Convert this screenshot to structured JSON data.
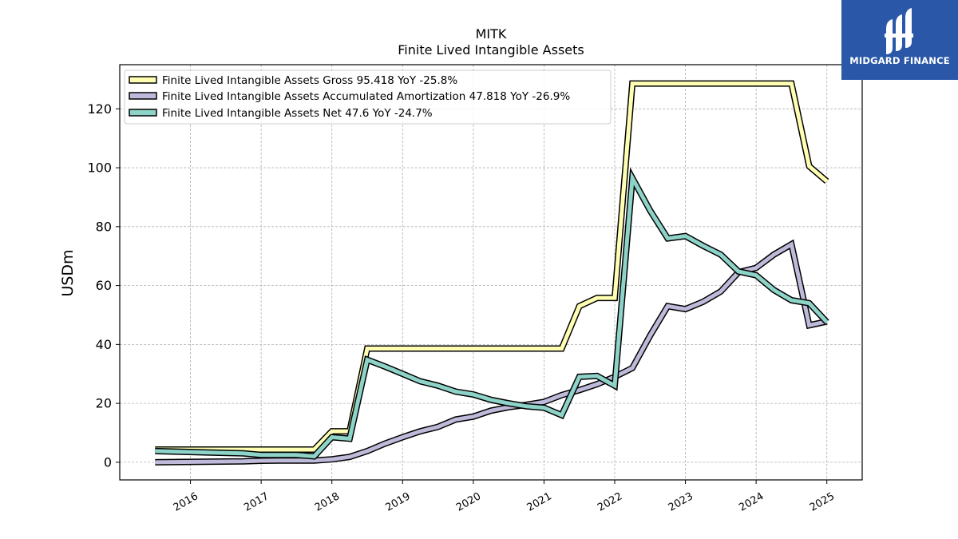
{
  "chart_data": {
    "type": "line",
    "title": "MITK",
    "subtitle": "Finite Lived Intangible Assets",
    "ylabel": "USDm",
    "xlim": [
      2015.0,
      2025.5
    ],
    "ylim": [
      -6,
      135
    ],
    "yticks": [
      0,
      20,
      40,
      60,
      80,
      100,
      120
    ],
    "xticks": [
      2016,
      2017,
      2018,
      2019,
      2020,
      2021,
      2022,
      2023,
      2024,
      2025
    ],
    "grid": true,
    "legend_position": "upper-left",
    "series": [
      {
        "name": "Finite Lived Intangible Assets Gross",
        "legend_label": "Finite Lived Intangible Assets Gross  95.418 YoY -25.8%",
        "color": "#ffffb3",
        "x": [
          2015.5,
          2017.75,
          2018.0,
          2018.25,
          2018.5,
          2021.25,
          2021.5,
          2021.75,
          2022.0,
          2022.25,
          2024.5,
          2024.75,
          2025.0
        ],
        "y": [
          4.3,
          4.3,
          10.5,
          10.5,
          38.6,
          38.6,
          53.0,
          55.8,
          55.8,
          128.6,
          128.6,
          100.5,
          95.4
        ]
      },
      {
        "name": "Finite Lived Intangible Assets Accumulated Amortization",
        "legend_label": "Finite Lived Intangible Assets Accumulated Amortization  47.818 YoY -26.9%",
        "color": "#bebada",
        "x": [
          2015.5,
          2016.75,
          2017.0,
          2017.25,
          2017.5,
          2017.75,
          2018.0,
          2018.25,
          2018.5,
          2018.75,
          2019.0,
          2019.25,
          2019.5,
          2019.75,
          2020.0,
          2020.25,
          2020.5,
          2020.75,
          2021.0,
          2021.25,
          2021.5,
          2021.75,
          2022.0,
          2022.25,
          2022.5,
          2022.75,
          2023.0,
          2023.25,
          2023.5,
          2023.75,
          2024.0,
          2024.25,
          2024.5,
          2024.75,
          2025.0
        ],
        "y": [
          0.0,
          0.3,
          0.5,
          0.6,
          0.6,
          0.6,
          1.0,
          1.8,
          3.8,
          6.3,
          8.5,
          10.5,
          12.0,
          14.5,
          15.5,
          17.5,
          18.7,
          19.5,
          20.5,
          22.8,
          24.5,
          26.5,
          29.0,
          32.0,
          43.0,
          53.0,
          52.0,
          54.5,
          58.0,
          64.5,
          66.0,
          70.5,
          74.0,
          46.5,
          47.8
        ]
      },
      {
        "name": "Finite Lived Intangible Assets Net",
        "legend_label": "Finite Lived Intangible Assets Net  47.6 YoY -24.7%",
        "color": "#8dd3c7",
        "x": [
          2015.5,
          2016.75,
          2017.0,
          2017.25,
          2017.5,
          2017.75,
          2018.0,
          2018.25,
          2018.5,
          2018.75,
          2019.0,
          2019.25,
          2019.5,
          2019.75,
          2020.0,
          2020.25,
          2020.5,
          2020.75,
          2021.0,
          2021.25,
          2021.5,
          2021.75,
          2022.0,
          2022.25,
          2022.5,
          2022.75,
          2023.0,
          2023.25,
          2023.5,
          2023.75,
          2024.0,
          2024.25,
          2024.5,
          2024.75,
          2025.0
        ],
        "y": [
          3.8,
          3.0,
          2.5,
          2.5,
          2.5,
          2.0,
          8.5,
          8.0,
          34.8,
          32.5,
          30.0,
          27.5,
          26.0,
          24.0,
          23.0,
          21.2,
          20.0,
          19.0,
          18.5,
          16.0,
          29.0,
          29.3,
          26.0,
          96.5,
          85.5,
          76.0,
          76.8,
          73.5,
          70.5,
          64.8,
          63.5,
          58.5,
          55.0,
          54.0,
          47.6
        ]
      }
    ]
  },
  "logo": {
    "brand": "MIDGARD FINANCE"
  }
}
